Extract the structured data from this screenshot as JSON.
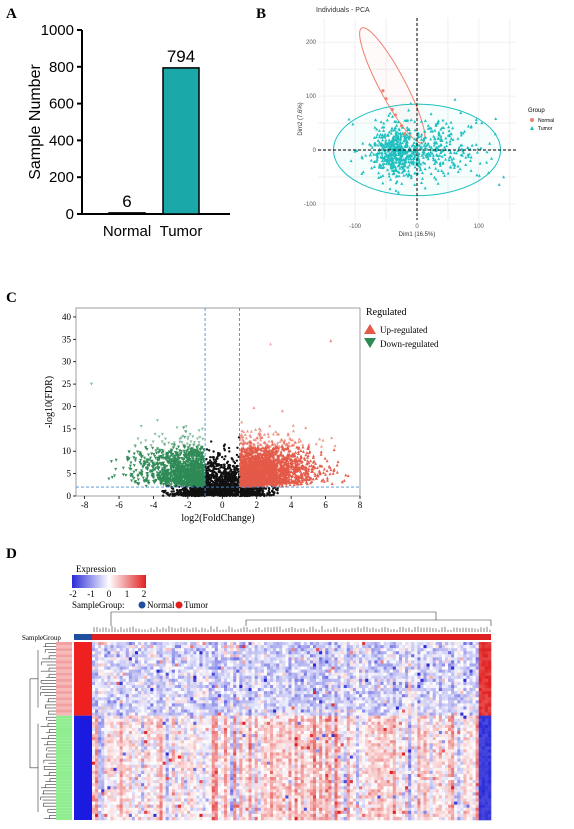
{
  "panels": {
    "a": "A",
    "b": "B",
    "c": "C",
    "d": "D"
  },
  "chart_data": [
    {
      "id": "A",
      "type": "bar",
      "categories": [
        "Normal",
        "Tumor"
      ],
      "values": [
        6,
        794
      ],
      "data_labels": [
        "6",
        "794"
      ],
      "ylabel": "Sample Number",
      "ylim": [
        0,
        1000
      ],
      "yticks": [
        0,
        200,
        400,
        600,
        800,
        1000
      ],
      "colors": {
        "Normal": "#1aa8a8",
        "Tumor": "#1aa8a8"
      }
    },
    {
      "id": "B",
      "type": "scatter",
      "title": "Individuals - PCA",
      "xlabel": "Dim1 (16.5%)",
      "ylabel": "Dim2 (7.6%)",
      "xlim": [
        -160,
        160
      ],
      "ylim": [
        -130,
        245
      ],
      "xticks": [
        -100,
        0,
        100
      ],
      "yticks": [
        -100,
        0,
        100,
        200
      ],
      "grid": true,
      "legend": {
        "title": "Group",
        "placement": "right",
        "items": [
          "Normal",
          "Tumor"
        ]
      },
      "colors": {
        "Normal": "#f08070",
        "Tumor": "#20c0c0"
      },
      "series": [
        {
          "name": "Normal",
          "points": [
            [
              -35,
              65
            ],
            [
              -40,
              75
            ],
            [
              -50,
              95
            ],
            [
              -20,
              30
            ],
            [
              -25,
              45
            ],
            [
              -55,
              110
            ]
          ]
        },
        {
          "name": "Tumor",
          "note": "794 points, approx centered at origin"
        }
      ]
    },
    {
      "id": "C",
      "type": "scatter",
      "xlabel": "log2(FoldChange)",
      "ylabel": "-log10(FDR)",
      "xlim": [
        -8.5,
        8
      ],
      "ylim": [
        0,
        42
      ],
      "xticks": [
        -8,
        -6,
        -4,
        -2,
        0,
        2,
        4,
        6,
        8
      ],
      "yticks": [
        0,
        5,
        10,
        15,
        20,
        25,
        30,
        35,
        40
      ],
      "thresholds": {
        "logfc": [
          -1,
          1
        ],
        "fdr": 2
      },
      "legend": {
        "title": "Regulated",
        "placement": "top-right",
        "items": [
          "Up-regulated",
          "Down-regulated"
        ]
      },
      "colors": {
        "Up-regulated": "#e45a48",
        "Down-regulated": "#2e8a55",
        "ns": "#111111"
      }
    },
    {
      "id": "D",
      "type": "heatmap",
      "legend_title": "Expression",
      "scale_ticks": [
        "-2",
        "-1",
        "0",
        "1",
        "2"
      ],
      "group_label": "SampleGroup:",
      "group_items": [
        "Normal",
        "Tumor"
      ],
      "annotation_label": "SampleGroup",
      "colors": {
        "low": "#2b2bd8",
        "mid": "#ffffff",
        "high": "#e02020",
        "Normal": "#1f4e9e",
        "Tumor": "#e02020",
        "up_block": "#ee2020",
        "down_block": "#1a1ae0",
        "row_annot_low": "#90ee90"
      }
    }
  ]
}
